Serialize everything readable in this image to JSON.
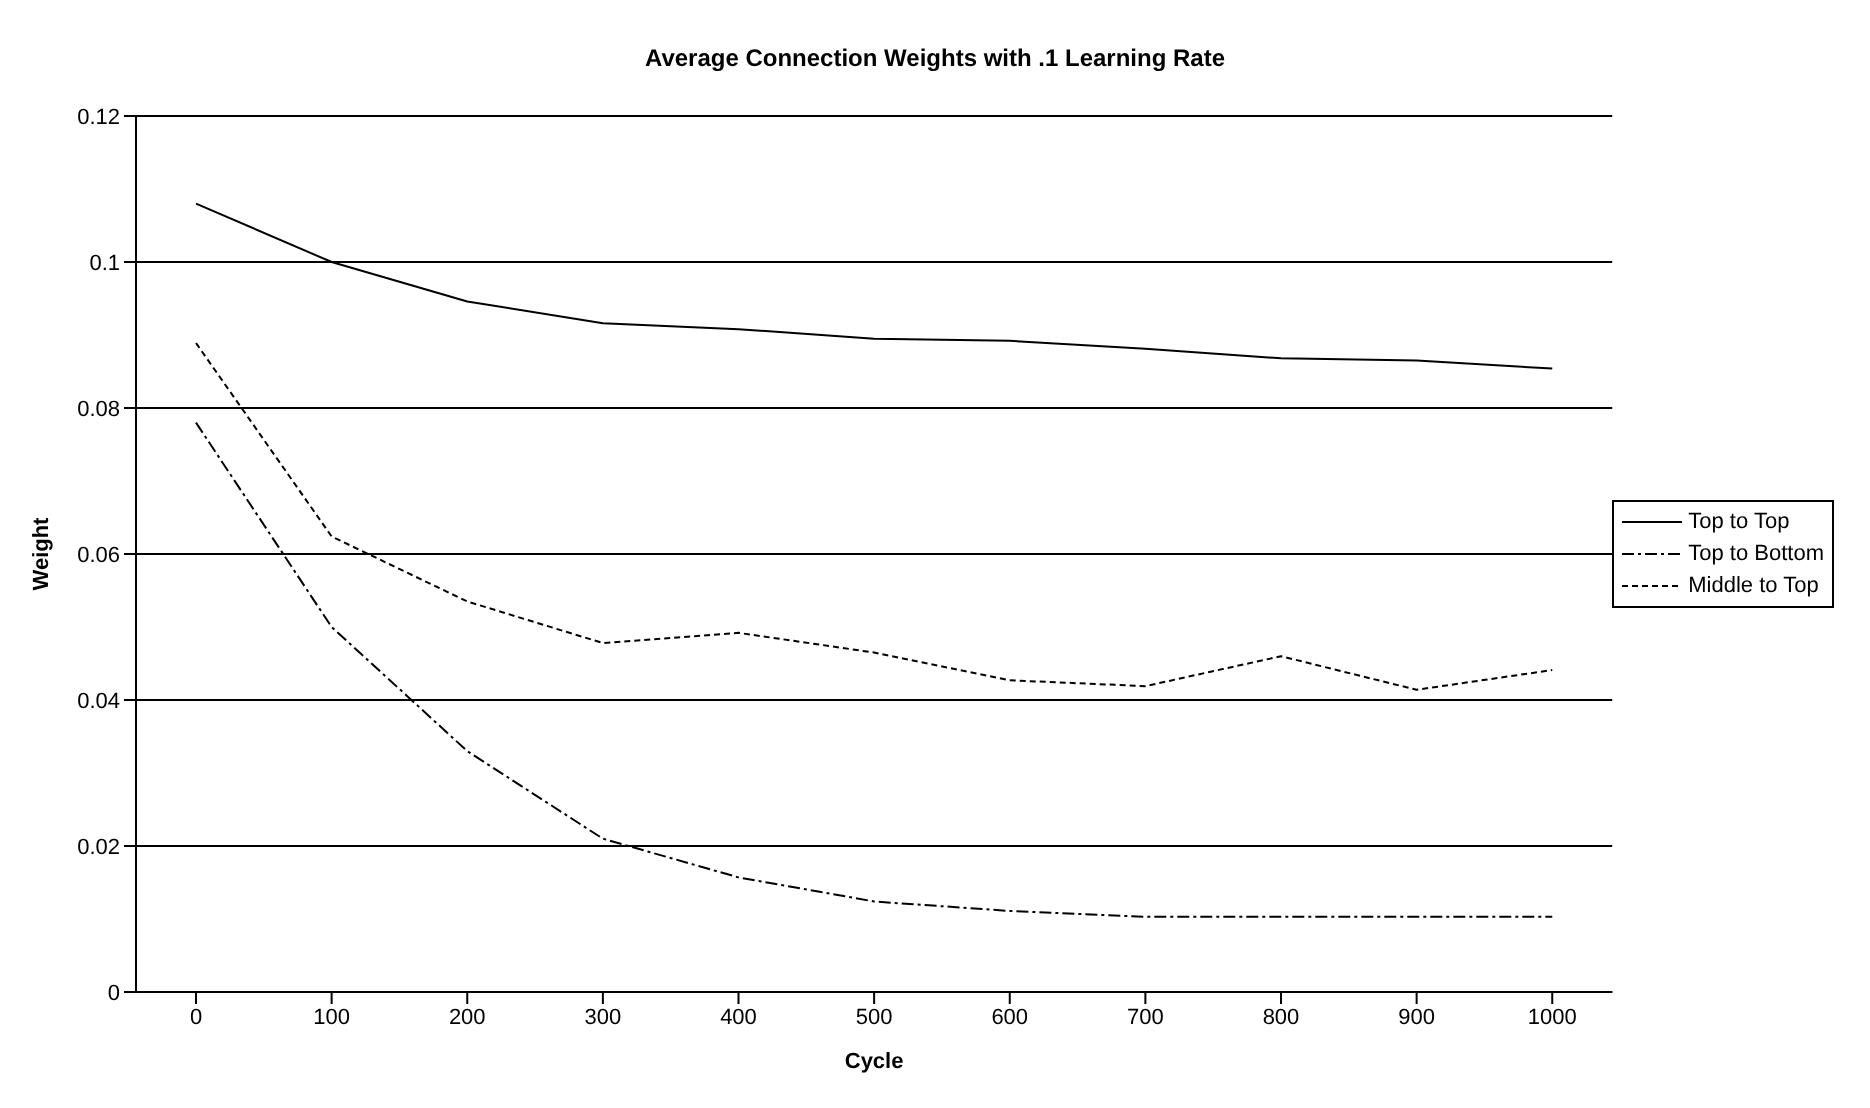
{
  "chart_data": {
    "type": "line",
    "title": "Average Connection Weights with .1 Learning Rate",
    "xlabel": "Cycle",
    "ylabel": "Weight",
    "categories": [
      "0",
      "100",
      "200",
      "300",
      "400",
      "500",
      "600",
      "700",
      "800",
      "900",
      "1000"
    ],
    "series": [
      {
        "name": "Top to Top",
        "color": "#000000",
        "line_style": "solid",
        "values": [
          0.108,
          0.1,
          0.0946,
          0.0916,
          0.0908,
          0.0895,
          0.0892,
          0.0881,
          0.0868,
          0.0865,
          0.0854
        ]
      },
      {
        "name": "Top to Bottom",
        "color": "#000000",
        "line_style": "dashed",
        "values": [
          0.078,
          0.05,
          0.033,
          0.021,
          0.0157,
          0.0124,
          0.0111,
          0.0103,
          0.0103,
          0.0103,
          0.0103
        ]
      },
      {
        "name": "Middle to Top",
        "color": "#000000",
        "line_style": "dotted",
        "values": [
          0.0889,
          0.0624,
          0.0535,
          0.0478,
          0.0492,
          0.0465,
          0.0427,
          0.0419,
          0.046,
          0.0414,
          0.0441
        ]
      }
    ],
    "ylim": [
      0,
      0.12
    ],
    "yticks": [
      0,
      {
        "value": 0.02,
        "label": "0.02"
      },
      {
        "value": 0.04,
        "label": "0.04"
      },
      {
        "value": 0.06,
        "label": "0.06"
      },
      {
        "value": 0.08,
        "label": "0.08"
      },
      {
        "value": 0.1,
        "label": "0.1"
      },
      {
        "value": 0.12,
        "label": "0.12"
      }
    ],
    "grid": "y",
    "legend": "right",
    "marker": "none"
  }
}
